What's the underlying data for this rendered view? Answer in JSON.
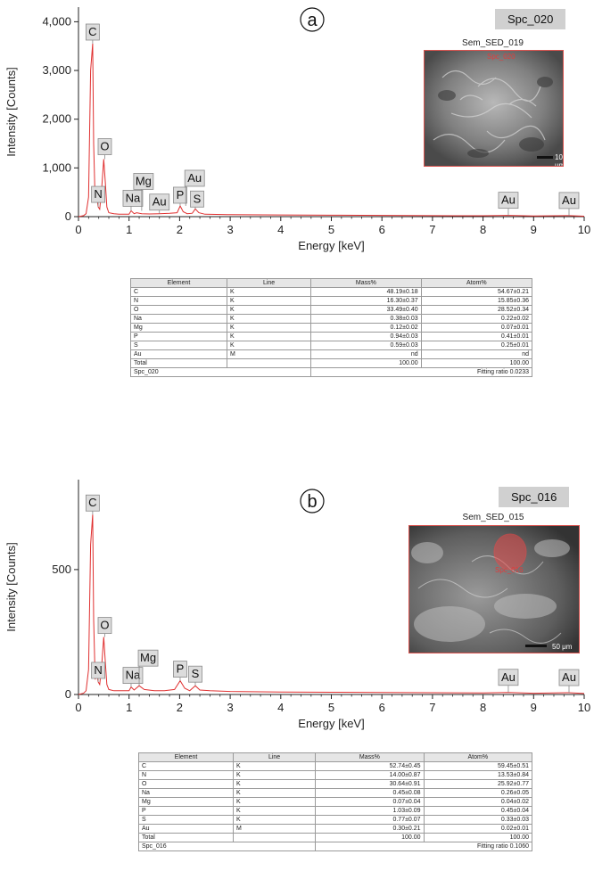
{
  "chart_data": [
    {
      "type": "line",
      "panel_label": "a",
      "spectrum_id": "Spc_020",
      "xlabel": "Energy [keV]",
      "ylabel": "Intensity [Counts]",
      "xlim": [
        0,
        10
      ],
      "ylim": [
        0,
        4300
      ],
      "x_ticks": [
        0,
        1,
        2,
        3,
        4,
        5,
        6,
        7,
        8,
        9,
        10
      ],
      "y_ticks": [
        0,
        1000,
        2000,
        3000,
        4000
      ],
      "y_tick_labels": [
        "0",
        "1,000",
        "2,000",
        "3,000",
        "4,000"
      ],
      "series": [
        {
          "color": "#e03030",
          "x": [
            0.0,
            0.1,
            0.15,
            0.2,
            0.24,
            0.28,
            0.3,
            0.33,
            0.36,
            0.39,
            0.42,
            0.46,
            0.5,
            0.53,
            0.56,
            0.6,
            0.7,
            0.8,
            1.0,
            1.04,
            1.1,
            1.15,
            1.25,
            1.4,
            1.6,
            1.8,
            1.95,
            2.01,
            2.07,
            2.15,
            2.25,
            2.31,
            2.38,
            2.5,
            3.0,
            4.0,
            5.0,
            6.0,
            7.0,
            8.0,
            8.5,
            9.0,
            9.7,
            10.0
          ],
          "y": [
            0,
            20,
            60,
            400,
            3000,
            3550,
            1500,
            300,
            420,
            200,
            150,
            600,
            1180,
            700,
            200,
            80,
            60,
            50,
            50,
            120,
            60,
            80,
            60,
            55,
            60,
            70,
            80,
            220,
            100,
            60,
            70,
            160,
            80,
            50,
            40,
            35,
            30,
            25,
            20,
            18,
            25,
            15,
            20,
            10
          ]
        }
      ],
      "peak_labels": [
        {
          "text": "C",
          "x": 0.28,
          "y": 3550
        },
        {
          "text": "N",
          "x": 0.39,
          "y": 200
        },
        {
          "text": "O",
          "x": 0.52,
          "y": 1180
        },
        {
          "text": "Na",
          "x": 1.04,
          "y": 120
        },
        {
          "text": "Mg",
          "x": 1.25,
          "y": 120
        },
        {
          "text": "Au",
          "x": 1.6,
          "y": 60
        },
        {
          "text": "P",
          "x": 2.01,
          "y": 220
        },
        {
          "text": "Au",
          "x": 2.12,
          "y": 220
        },
        {
          "text": "S",
          "x": 2.31,
          "y": 160
        },
        {
          "text": "Au",
          "x": 8.5,
          "y": 25
        },
        {
          "text": "Au",
          "x": 9.7,
          "y": 20
        }
      ]
    },
    {
      "type": "line",
      "panel_label": "b",
      "spectrum_id": "Spc_016",
      "xlabel": "Energy [keV]",
      "ylabel": "Intensity [Counts]",
      "xlim": [
        0,
        10
      ],
      "ylim": [
        0,
        860
      ],
      "x_ticks": [
        0,
        1,
        2,
        3,
        4,
        5,
        6,
        7,
        8,
        9,
        10
      ],
      "y_ticks": [
        0,
        500
      ],
      "y_tick_labels": [
        "0",
        "500"
      ],
      "series": [
        {
          "color": "#e03030",
          "x": [
            0.0,
            0.1,
            0.15,
            0.2,
            0.24,
            0.28,
            0.3,
            0.33,
            0.36,
            0.39,
            0.42,
            0.46,
            0.5,
            0.53,
            0.56,
            0.6,
            0.7,
            0.8,
            1.0,
            1.04,
            1.1,
            1.2,
            1.3,
            1.5,
            1.7,
            1.9,
            2.01,
            2.1,
            2.2,
            2.31,
            2.4,
            2.6,
            3.0,
            4.0,
            5.0,
            6.0,
            7.0,
            8.0,
            8.5,
            9.0,
            9.7,
            10.0
          ],
          "y": [
            0,
            5,
            15,
            100,
            600,
            720,
            300,
            60,
            90,
            50,
            40,
            120,
            230,
            130,
            40,
            20,
            15,
            15,
            15,
            30,
            18,
            35,
            20,
            15,
            15,
            20,
            55,
            25,
            15,
            35,
            18,
            15,
            12,
            10,
            9,
            8,
            7,
            6,
            8,
            5,
            7,
            4
          ]
        }
      ],
      "peak_labels": [
        {
          "text": "C",
          "x": 0.28,
          "y": 720
        },
        {
          "text": "N",
          "x": 0.39,
          "y": 50
        },
        {
          "text": "O",
          "x": 0.52,
          "y": 230
        },
        {
          "text": "Na",
          "x": 1.04,
          "y": 30
        },
        {
          "text": "Mg",
          "x": 1.2,
          "y": 35
        },
        {
          "text": "P",
          "x": 2.01,
          "y": 55
        },
        {
          "text": "S",
          "x": 2.31,
          "y": 35
        },
        {
          "text": "Au",
          "x": 8.5,
          "y": 8
        },
        {
          "text": "Au",
          "x": 9.7,
          "y": 7
        }
      ]
    }
  ],
  "panel_a": {
    "letter": "a",
    "badge": "Spc_020",
    "sem_title": "Sem_SED_019",
    "sem_spot_label": "Spc_020",
    "sem_scale": "10 μm",
    "table": {
      "headers": [
        "Element",
        "Line",
        "Mass%",
        "Atom%"
      ],
      "rows": [
        [
          "C",
          "K",
          "48.19±0.18",
          "54.67±0.21"
        ],
        [
          "N",
          "K",
          "16.30±0.37",
          "15.85±0.36"
        ],
        [
          "O",
          "K",
          "33.49±0.40",
          "28.52±0.34"
        ],
        [
          "Na",
          "K",
          "0.38±0.03",
          "0.22±0.02"
        ],
        [
          "Mg",
          "K",
          "0.12±0.02",
          "0.07±0.01"
        ],
        [
          "P",
          "K",
          "0.94±0.03",
          "0.41±0.01"
        ],
        [
          "S",
          "K",
          "0.59±0.03",
          "0.25±0.01"
        ],
        [
          "Au",
          "M",
          "nd",
          "nd"
        ],
        [
          "Total",
          "",
          "100.00",
          "100.00"
        ]
      ],
      "footer_left": "Spc_020",
      "footer_right": "Fitting ratio 0.0233"
    }
  },
  "panel_b": {
    "letter": "b",
    "badge": "Spc_016",
    "sem_title": "Sem_SED_015",
    "sem_spot_label": "Spc_016",
    "sem_scale": "50 μm",
    "table": {
      "headers": [
        "Element",
        "Line",
        "Mass%",
        "Atom%"
      ],
      "rows": [
        [
          "C",
          "K",
          "52.74±0.45",
          "59.45±0.51"
        ],
        [
          "N",
          "K",
          "14.00±0.87",
          "13.53±0.84"
        ],
        [
          "O",
          "K",
          "30.64±0.91",
          "25.92±0.77"
        ],
        [
          "Na",
          "K",
          "0.45±0.08",
          "0.26±0.05"
        ],
        [
          "Mg",
          "K",
          "0.07±0.04",
          "0.04±0.02"
        ],
        [
          "P",
          "K",
          "1.03±0.09",
          "0.45±0.04"
        ],
        [
          "S",
          "K",
          "0.77±0.07",
          "0.33±0.03"
        ],
        [
          "Au",
          "M",
          "0.30±0.21",
          "0.02±0.01"
        ],
        [
          "Total",
          "",
          "100.00",
          "100.00"
        ]
      ],
      "footer_left": "Spc_016",
      "footer_right": "Fitting ratio 0.1060"
    }
  }
}
